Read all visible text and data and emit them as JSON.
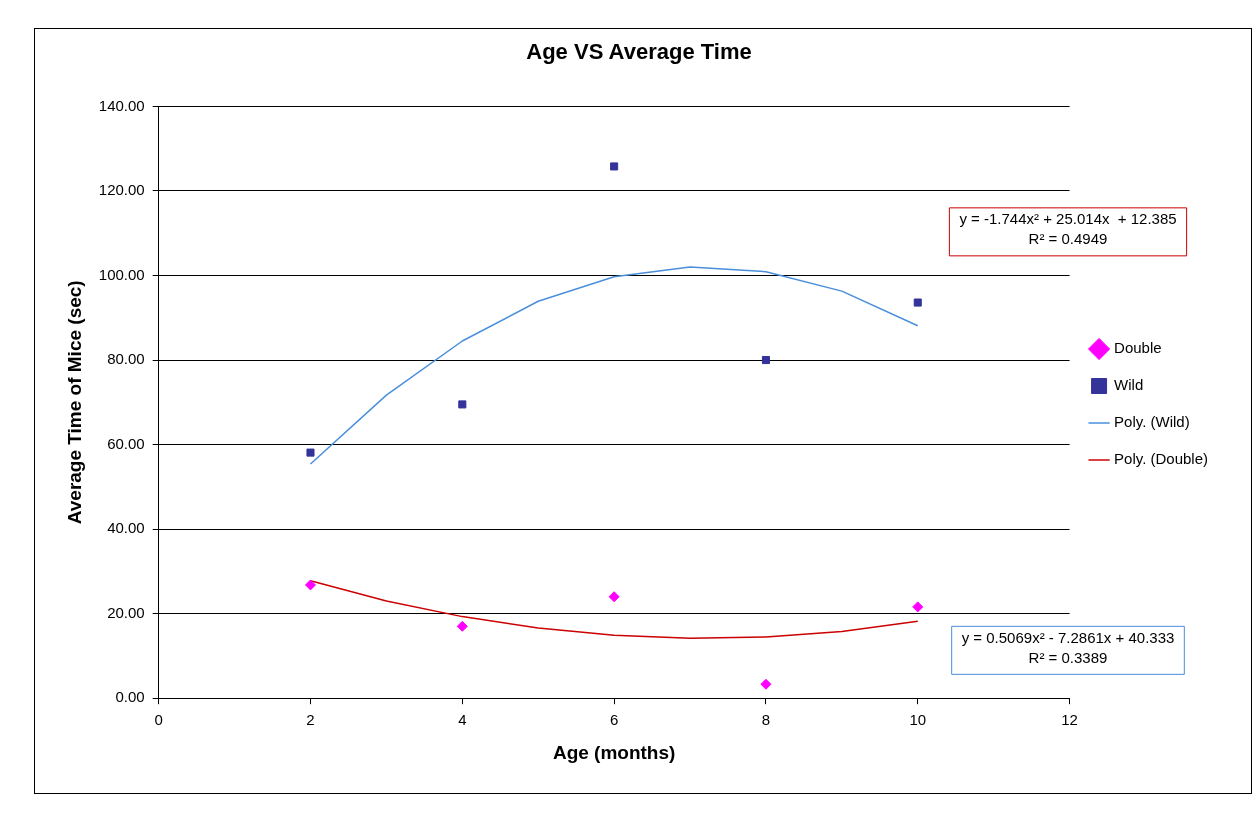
{
  "chart_data": {
    "type": "scatter",
    "title": "Age VS Average Time",
    "xlabel": "Age (months)",
    "ylabel": "Average Time of Mice (sec)",
    "x": [
      2,
      4,
      6,
      8,
      10
    ],
    "series": [
      {
        "name": "Double",
        "color": "#ff00ff",
        "marker": "diamond",
        "values": [
          26.8,
          17,
          24,
          3.3,
          21.6
        ]
      },
      {
        "name": "Wild",
        "color": "#333399",
        "marker": "square",
        "values": [
          58.1,
          69.5,
          125.8,
          80,
          93.6
        ]
      },
      {
        "name": "Poly. (Wild)",
        "type": "line",
        "color": "#4a8fdc",
        "marker": "none",
        "x": [
          2,
          3,
          4,
          5,
          6,
          7,
          8,
          9,
          10
        ],
        "values": [
          55.4,
          71.7,
          84.5,
          93.9,
          99.7,
          102,
          100.9,
          96.3,
          88.1
        ]
      },
      {
        "name": "Poly. (Double)",
        "type": "line",
        "color": "#cc0000",
        "marker": "none",
        "x": [
          2,
          3,
          4,
          5,
          6,
          7,
          8,
          9,
          10
        ],
        "values": [
          27.8,
          23,
          19.3,
          16.6,
          14.9,
          14.2,
          14.5,
          15.8,
          18.2
        ]
      }
    ],
    "annotations": [
      "y = -1.744x² + 25.014x  + 12.385\nR² = 0.4949",
      "y = 0.5069x² - 7.2861x + 40.333\nR² = 0.3389"
    ],
    "xlim": [
      0,
      12
    ],
    "xticks": [
      0,
      2,
      4,
      6,
      8,
      10,
      12
    ],
    "ylim": [
      0,
      140
    ],
    "yticks": [
      {
        "value": 0,
        "label": "0.00"
      },
      {
        "value": 20,
        "label": "20.00"
      },
      {
        "value": 40,
        "label": "40.00"
      },
      {
        "value": 60,
        "label": "60.00"
      },
      {
        "value": 80,
        "label": "80.00"
      },
      {
        "value": 100,
        "label": "100.00"
      },
      {
        "value": 120,
        "label": "120.00"
      },
      {
        "value": 140,
        "label": "140.00"
      }
    ],
    "grid": "y",
    "legend": "right"
  }
}
